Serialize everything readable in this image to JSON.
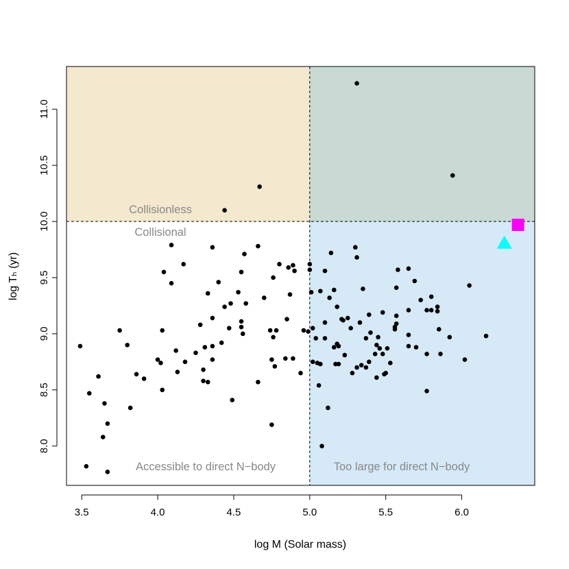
{
  "chart_data": {
    "type": "scatter",
    "title": "",
    "xlabel": "log M (Solar mass)",
    "ylabel": "log Tₕ (yr)",
    "xlim": [
      3.4,
      6.48
    ],
    "ylim": [
      7.65,
      11.38
    ],
    "xticks": [
      "3.5",
      "4.0",
      "4.5",
      "5.0",
      "5.5",
      "6.0"
    ],
    "yticks": [
      "8.0",
      "8.5",
      "9.0",
      "9.5",
      "10.0",
      "10.5",
      "11.0"
    ],
    "x_divider": 5.0,
    "y_divider": 10.0,
    "regions": [
      {
        "name": "collisionless-accessible",
        "x_range": [
          3.4,
          5.0
        ],
        "y_range": [
          10.0,
          11.38
        ],
        "color": "#F4E8CF"
      },
      {
        "name": "collisionless-too-large",
        "x_range": [
          5.0,
          6.48
        ],
        "y_range": [
          10.0,
          11.38
        ],
        "color": "#C9DAD5"
      },
      {
        "name": "collisional-too-large",
        "x_range": [
          5.0,
          6.48
        ],
        "y_range": [
          7.65,
          10.0
        ],
        "color": "#D5E9F7"
      }
    ],
    "annotations": {
      "collisionless": "Collisionless",
      "collisional": "Collisional",
      "accessible": "Accessible to direct N−body",
      "too_large": "Too large for direct N−body"
    },
    "series": [
      {
        "color": "#000000",
        "marker": "circle",
        "points": [
          [
            3.49,
            8.89
          ],
          [
            3.53,
            7.82
          ],
          [
            3.55,
            8.47
          ],
          [
            3.61,
            8.62
          ],
          [
            3.64,
            8.08
          ],
          [
            3.65,
            8.38
          ],
          [
            3.67,
            8.2
          ],
          [
            3.67,
            7.77
          ],
          [
            3.75,
            9.03
          ],
          [
            3.8,
            8.9
          ],
          [
            3.82,
            8.34
          ],
          [
            3.86,
            8.64
          ],
          [
            3.91,
            8.6
          ],
          [
            4.0,
            8.77
          ],
          [
            4.02,
            8.74
          ],
          [
            4.03,
            8.5
          ],
          [
            4.03,
            9.03
          ],
          [
            4.04,
            9.55
          ],
          [
            4.09,
            9.45
          ],
          [
            4.09,
            9.79
          ],
          [
            4.12,
            8.85
          ],
          [
            4.13,
            8.66
          ],
          [
            4.17,
            9.62
          ],
          [
            4.18,
            8.75
          ],
          [
            4.25,
            8.83
          ],
          [
            4.28,
            9.08
          ],
          [
            4.3,
            8.68
          ],
          [
            4.3,
            8.58
          ],
          [
            4.31,
            8.88
          ],
          [
            4.33,
            9.36
          ],
          [
            4.33,
            8.57
          ],
          [
            4.36,
            9.77
          ],
          [
            4.36,
            9.14
          ],
          [
            4.36,
            8.89
          ],
          [
            4.36,
            8.77
          ],
          [
            4.4,
            9.46
          ],
          [
            4.42,
            8.92
          ],
          [
            4.44,
            9.24
          ],
          [
            4.44,
            10.1
          ],
          [
            4.47,
            9.05
          ],
          [
            4.48,
            9.27
          ],
          [
            4.49,
            8.41
          ],
          [
            4.53,
            9.37
          ],
          [
            4.55,
            9.55
          ],
          [
            4.55,
            9.11
          ],
          [
            4.55,
            9.06
          ],
          [
            4.56,
            9.0
          ],
          [
            4.57,
            9.71
          ],
          [
            4.58,
            9.27
          ],
          [
            4.66,
            9.78
          ],
          [
            4.66,
            8.57
          ],
          [
            4.67,
            10.31
          ],
          [
            4.7,
            9.32
          ],
          [
            4.74,
            9.03
          ],
          [
            4.75,
            8.77
          ],
          [
            4.75,
            8.19
          ],
          [
            4.76,
            9.5
          ],
          [
            4.76,
            8.97
          ],
          [
            4.77,
            8.71
          ],
          [
            4.78,
            9.03
          ],
          [
            4.8,
            9.62
          ],
          [
            4.84,
            8.78
          ],
          [
            4.85,
            9.13
          ],
          [
            4.86,
            9.59
          ],
          [
            4.87,
            9.35
          ],
          [
            4.89,
            8.78
          ],
          [
            4.89,
            9.61
          ],
          [
            4.9,
            9.56
          ],
          [
            4.94,
            8.65
          ],
          [
            4.96,
            9.03
          ],
          [
            4.99,
            9.02
          ],
          [
            5.0,
            9.62
          ],
          [
            5.0,
            9.57
          ],
          [
            5.01,
            9.37
          ],
          [
            5.02,
            9.05
          ],
          [
            5.02,
            8.75
          ],
          [
            5.04,
            8.96
          ],
          [
            5.05,
            8.74
          ],
          [
            5.06,
            8.54
          ],
          [
            5.07,
            9.38
          ],
          [
            5.07,
            8.73
          ],
          [
            5.08,
            8.0
          ],
          [
            5.1,
            9.56
          ],
          [
            5.1,
            9.1
          ],
          [
            5.1,
            8.96
          ],
          [
            5.12,
            8.34
          ],
          [
            5.13,
            9.32
          ],
          [
            5.14,
            9.72
          ],
          [
            5.16,
            9.39
          ],
          [
            5.16,
            8.88
          ],
          [
            5.17,
            8.73
          ],
          [
            5.18,
            9.24
          ],
          [
            5.18,
            8.91
          ],
          [
            5.19,
            8.89
          ],
          [
            5.19,
            8.73
          ],
          [
            5.21,
            9.13
          ],
          [
            5.22,
            9.12
          ],
          [
            5.23,
            8.81
          ],
          [
            5.25,
            9.14
          ],
          [
            5.27,
            9.05
          ],
          [
            5.28,
            8.65
          ],
          [
            5.3,
            9.77
          ],
          [
            5.31,
            9.68
          ],
          [
            5.31,
            11.23
          ],
          [
            5.31,
            8.7
          ],
          [
            5.33,
            9.1
          ],
          [
            5.34,
            8.72
          ],
          [
            5.35,
            9.4
          ],
          [
            5.37,
            8.96
          ],
          [
            5.37,
            8.7
          ],
          [
            5.39,
            9.17
          ],
          [
            5.39,
            8.75
          ],
          [
            5.4,
            9.01
          ],
          [
            5.43,
            8.82
          ],
          [
            5.44,
            8.9
          ],
          [
            5.44,
            8.61
          ],
          [
            5.45,
            8.97
          ],
          [
            5.46,
            8.87
          ],
          [
            5.48,
            8.82
          ],
          [
            5.48,
            9.19
          ],
          [
            5.49,
            8.64
          ],
          [
            5.5,
            8.65
          ],
          [
            5.51,
            8.87
          ],
          [
            5.53,
            8.74
          ],
          [
            5.56,
            9.06
          ],
          [
            5.56,
            9.04
          ],
          [
            5.57,
            9.41
          ],
          [
            5.57,
            9.16
          ],
          [
            5.57,
            9.09
          ],
          [
            5.58,
            9.57
          ],
          [
            5.65,
            9.58
          ],
          [
            5.65,
            9.21
          ],
          [
            5.65,
            8.99
          ],
          [
            5.65,
            8.89
          ],
          [
            5.69,
            9.47
          ],
          [
            5.7,
            8.88
          ],
          [
            5.73,
            9.3
          ],
          [
            5.77,
            9.21
          ],
          [
            5.77,
            8.82
          ],
          [
            5.77,
            8.49
          ],
          [
            5.8,
            9.21
          ],
          [
            5.8,
            9.33
          ],
          [
            5.84,
            9.24
          ],
          [
            5.84,
            9.2
          ],
          [
            5.85,
            9.04
          ],
          [
            5.86,
            8.82
          ],
          [
            5.92,
            8.97
          ],
          [
            5.94,
            10.41
          ],
          [
            6.02,
            8.77
          ],
          [
            6.05,
            9.43
          ],
          [
            6.16,
            8.98
          ]
        ]
      },
      {
        "color": "#00FFFF",
        "marker": "triangle",
        "points": [
          [
            6.28,
            9.81
          ]
        ]
      },
      {
        "color": "#FF00FF",
        "marker": "square",
        "points": [
          [
            6.37,
            9.97
          ]
        ]
      }
    ]
  }
}
